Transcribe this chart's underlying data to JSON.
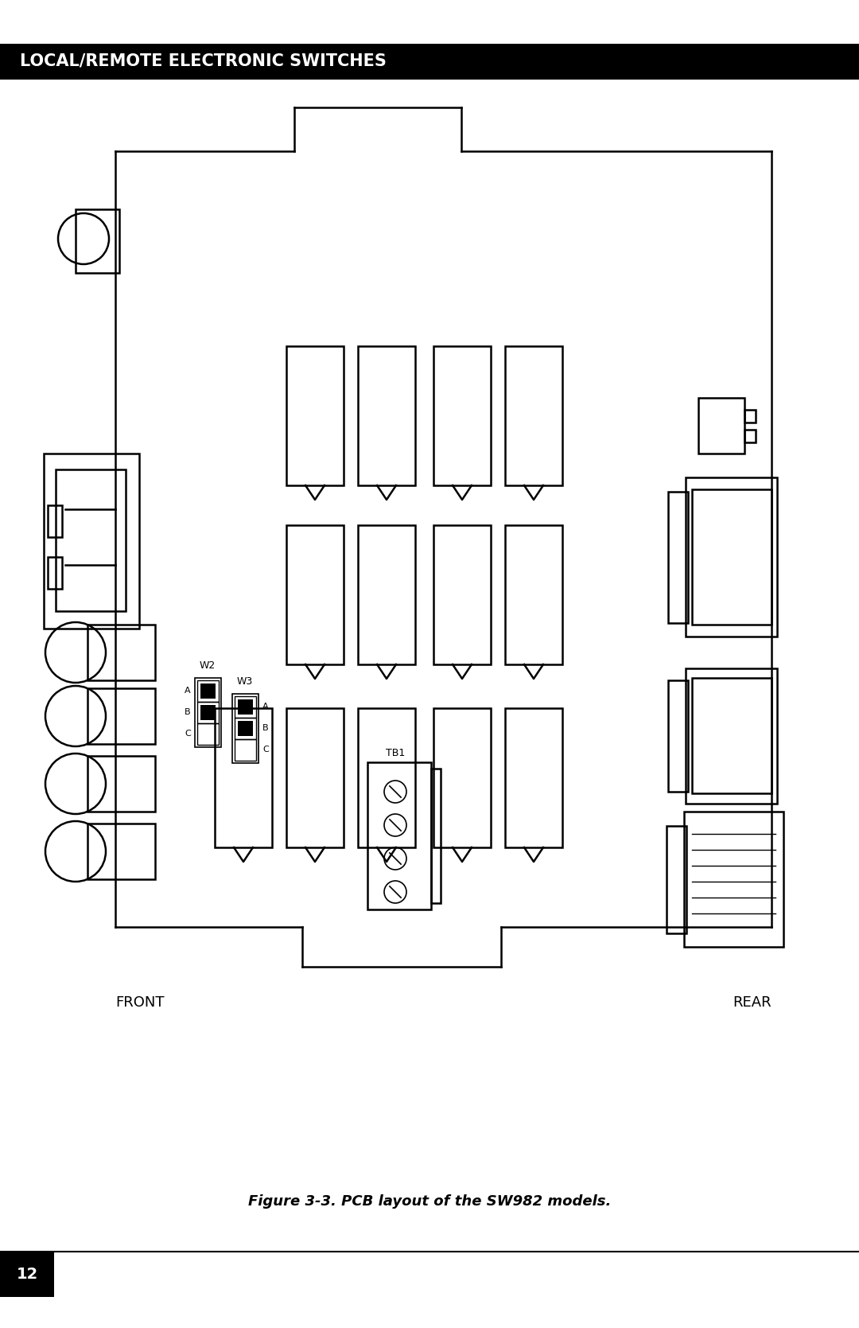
{
  "bg_color": "#ffffff",
  "line_color": "#000000",
  "header_bg": "#000000",
  "header_text": "LOCAL/REMOTE ELECTRONIC SWITCHES",
  "header_text_color": "#ffffff",
  "caption": "Figure 3-3. PCB layout of the SW982 models.",
  "page_number": "12",
  "front_label": "FRONT",
  "rear_label": "REAR",
  "w2_label": "W2",
  "w3_label": "W3",
  "tb1_label": "TB1",
  "abc_w2": [
    "A",
    "B",
    "C"
  ],
  "abc_w3": [
    "A",
    "B",
    "C"
  ],
  "figsize": [
    10.8,
    16.69
  ],
  "dpi": 100
}
